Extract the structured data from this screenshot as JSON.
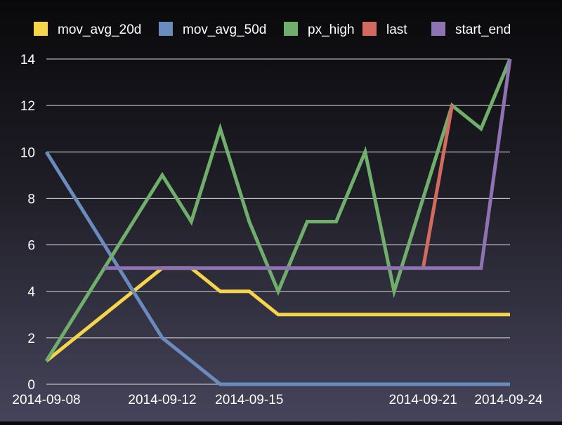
{
  "chart_data": {
    "type": "line",
    "title": "",
    "xlabel": "",
    "ylabel": "",
    "x": [
      "2014-09-08",
      "2014-09-09",
      "2014-09-10",
      "2014-09-11",
      "2014-09-12",
      "2014-09-13",
      "2014-09-14",
      "2014-09-15",
      "2014-09-16",
      "2014-09-17",
      "2014-09-18",
      "2014-09-19",
      "2014-09-20",
      "2014-09-21",
      "2014-09-22",
      "2014-09-23",
      "2014-09-24"
    ],
    "x_tick_labels": [
      "2014-09-08",
      "2014-09-12",
      "2014-09-15",
      "2014-09-21",
      "2014-09-24"
    ],
    "x_tick_dates": [
      "2014-09-08",
      "2014-09-12",
      "2014-09-15",
      "2014-09-21",
      "2014-09-24"
    ],
    "y_ticks": [
      0,
      2,
      4,
      6,
      8,
      10,
      12,
      14
    ],
    "ylim": [
      0,
      14
    ],
    "grid": "horizontal",
    "legend_position": "top",
    "series": [
      {
        "name": "mov_avg_20d",
        "color": "#f6d54a",
        "points": [
          [
            "2014-09-08",
            1
          ],
          [
            "2014-09-12",
            5
          ],
          [
            "2014-09-13",
            5
          ],
          [
            "2014-09-14",
            4
          ],
          [
            "2014-09-15",
            4
          ],
          [
            "2014-09-16",
            3
          ],
          [
            "2014-09-24",
            3
          ]
        ]
      },
      {
        "name": "mov_avg_50d",
        "color": "#6a8bbd",
        "points": [
          [
            "2014-09-08",
            10
          ],
          [
            "2014-09-12",
            2
          ],
          [
            "2014-09-14",
            0
          ],
          [
            "2014-09-24",
            0
          ]
        ]
      },
      {
        "name": "px_high",
        "color": "#6fae6b",
        "points": [
          [
            "2014-09-08",
            1
          ],
          [
            "2014-09-12",
            9
          ],
          [
            "2014-09-13",
            7
          ],
          [
            "2014-09-14",
            11
          ],
          [
            "2014-09-15",
            7
          ],
          [
            "2014-09-16",
            4
          ],
          [
            "2014-09-17",
            7
          ],
          [
            "2014-09-18",
            7
          ],
          [
            "2014-09-19",
            10
          ],
          [
            "2014-09-20",
            4
          ],
          [
            "2014-09-22",
            12
          ],
          [
            "2014-09-23",
            11
          ],
          [
            "2014-09-24",
            14
          ]
        ]
      },
      {
        "name": "last",
        "color": "#d26b5e",
        "points": [
          [
            "2014-09-21",
            5
          ],
          [
            "2014-09-22",
            12
          ]
        ]
      },
      {
        "name": "start_end",
        "color": "#8f72b4",
        "points": [
          [
            "2014-09-10",
            5
          ],
          [
            "2014-09-23",
            5
          ],
          [
            "2014-09-24",
            14
          ]
        ]
      }
    ]
  }
}
